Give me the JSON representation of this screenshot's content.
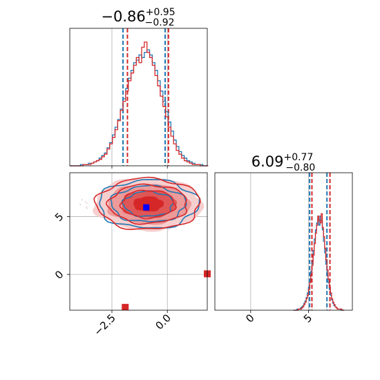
{
  "chart_data": {
    "type": "corner",
    "parameters": [
      "",
      ""
    ],
    "titles": [
      {
        "median": "−0.86",
        "plus": "+0.95",
        "minus": "−0.92"
      },
      {
        "median": "6.09",
        "plus": "+0.77",
        "minus": "−0.80"
      }
    ],
    "colors": {
      "blue": "#1f77b4",
      "red": "#d62728",
      "grid": "#b0b0b0"
    },
    "param1": {
      "range": [
        -4.4,
        1.8
      ],
      "ticks": [
        -2.5,
        0.0
      ],
      "tick_labels": [
        "−2.5",
        "0.0"
      ],
      "quantile_lines": {
        "blue": [
          -2.0,
          -0.1
        ],
        "red": [
          -1.8,
          0.05
        ]
      },
      "hist_blue": {
        "start": -4.4,
        "width": 0.12,
        "counts": [
          0,
          0,
          0,
          0,
          1,
          1,
          1,
          2,
          2,
          3,
          4,
          6,
          8,
          10,
          14,
          18,
          24,
          30,
          36,
          44,
          52,
          60,
          68,
          74,
          80,
          82,
          86,
          84,
          88,
          90,
          86,
          80,
          74,
          66,
          58,
          50,
          42,
          34,
          27,
          20,
          15,
          11,
          8,
          6,
          4,
          3,
          2,
          1,
          1,
          1,
          0,
          0
        ]
      },
      "hist_red": {
        "start": -4.4,
        "width": 0.12,
        "counts": [
          0,
          0,
          0,
          0,
          0,
          1,
          1,
          1,
          2,
          3,
          4,
          5,
          7,
          9,
          13,
          17,
          22,
          28,
          35,
          43,
          50,
          58,
          66,
          72,
          78,
          84,
          80,
          92,
          96,
          88,
          84,
          78,
          70,
          62,
          54,
          46,
          38,
          30,
          23,
          17,
          12,
          9,
          6,
          4,
          3,
          2,
          1,
          1,
          1,
          0,
          0,
          0
        ]
      }
    },
    "param2": {
      "range": [
        -3.1,
        8.8
      ],
      "ticks": [
        0,
        5
      ],
      "tick_labels": [
        "0",
        "5"
      ],
      "quantile_lines": {
        "blue": [
          5.1,
          6.6
        ],
        "red": [
          5.3,
          6.86
        ]
      },
      "hist_blue": {
        "start": 3.7,
        "width": 0.1,
        "counts": [
          0,
          0,
          0,
          1,
          1,
          1,
          2,
          3,
          4,
          6,
          8,
          11,
          15,
          20,
          26,
          34,
          42,
          52,
          62,
          70,
          76,
          80,
          74,
          82,
          78,
          70,
          60,
          50,
          40,
          31,
          24,
          18,
          13,
          9,
          6,
          4,
          3,
          2,
          1,
          1,
          1,
          0,
          0,
          0
        ]
      },
      "hist_red": {
        "start": 3.7,
        "width": 0.1,
        "counts": [
          0,
          0,
          0,
          0,
          1,
          1,
          1,
          2,
          3,
          5,
          7,
          10,
          13,
          18,
          24,
          31,
          39,
          48,
          58,
          67,
          74,
          82,
          78,
          76,
          84,
          72,
          64,
          54,
          44,
          35,
          27,
          20,
          15,
          10,
          7,
          5,
          3,
          2,
          1,
          1,
          1,
          1,
          0,
          0
        ]
      }
    },
    "scatter_2d": {
      "center": [
        -0.86,
        6.09
      ],
      "markers_blue": [
        [
          -0.95,
          5.8
        ]
      ],
      "markers_red": [
        [
          -0.8,
          5.85
        ],
        [
          1.8,
          0.05
        ],
        [
          -1.9,
          -2.85
        ]
      ]
    }
  }
}
